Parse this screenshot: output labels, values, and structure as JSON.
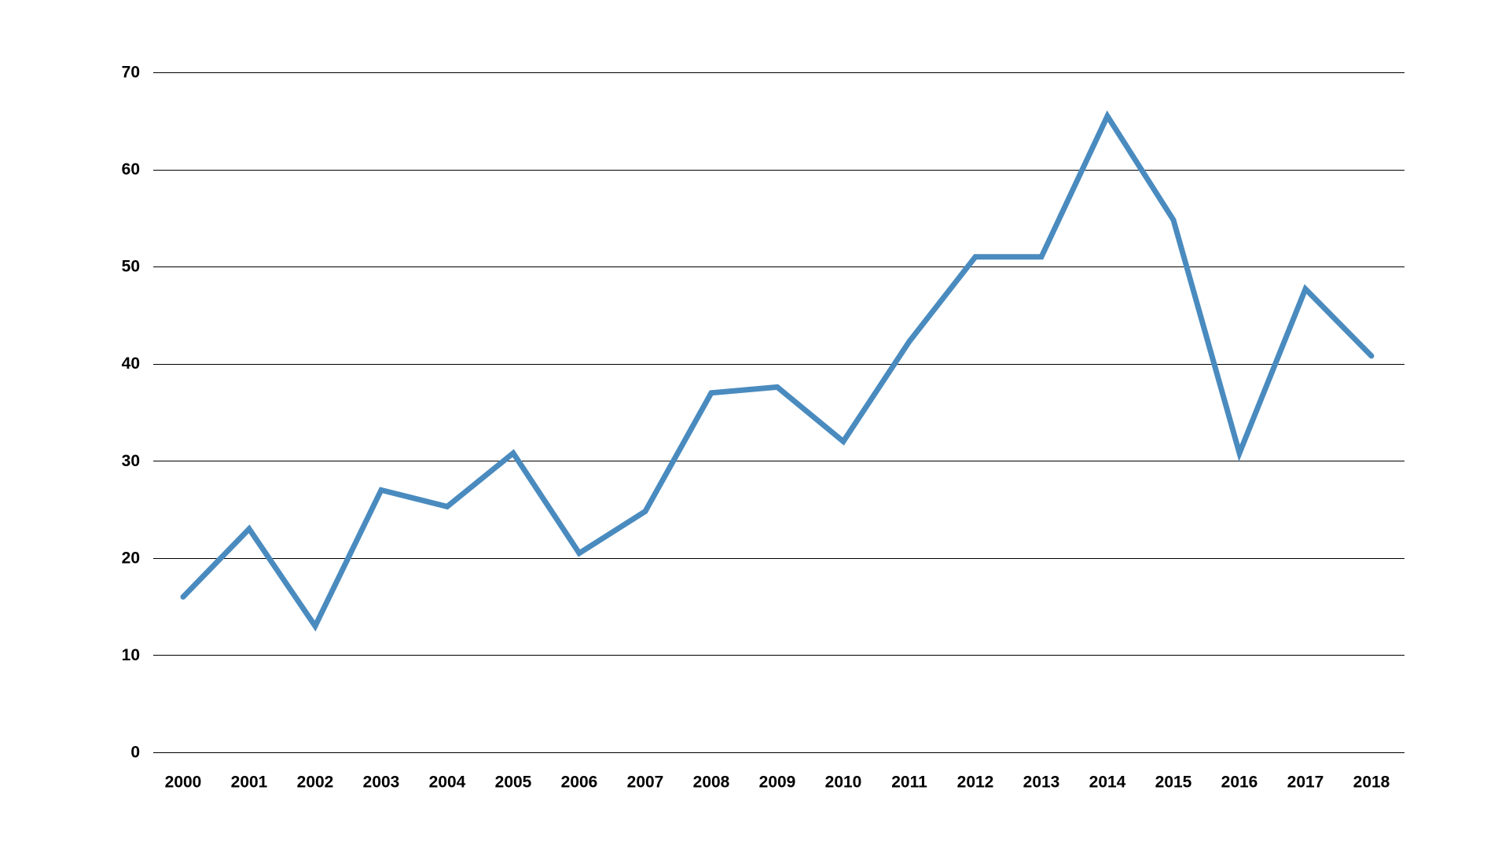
{
  "chart_data": {
    "type": "line",
    "title": "",
    "xlabel": "",
    "ylabel": "",
    "categories": [
      "2000",
      "2001",
      "2002",
      "2003",
      "2004",
      "2005",
      "2006",
      "2007",
      "2008",
      "2009",
      "2010",
      "2011",
      "2012",
      "2013",
      "2014",
      "2015",
      "2016",
      "2017",
      "2018"
    ],
    "series": [
      {
        "values": [
          16,
          23,
          13,
          27,
          25.3,
          30.8,
          20.5,
          24.8,
          37,
          37.6,
          32,
          42.3,
          51,
          51,
          65.5,
          54.8,
          30.8,
          47.7,
          40.8
        ],
        "color": "#4a8bbf"
      }
    ],
    "ylim": [
      0,
      70
    ],
    "yticks": [
      0,
      10,
      20,
      30,
      40,
      50,
      60,
      70
    ],
    "grid": true,
    "legend": "none"
  }
}
